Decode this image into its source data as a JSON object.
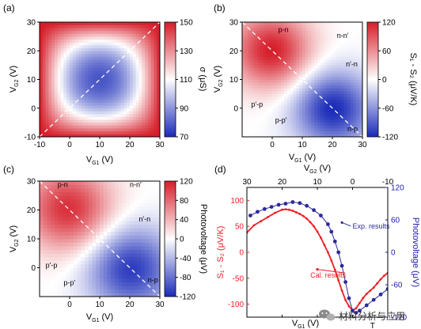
{
  "colors": {
    "blue": "#1a2bb8",
    "white": "#ffffff",
    "red": "#d61e2a",
    "red_series": "#ee1d23",
    "blue_series": "#2d2a9a",
    "right_axis": "#1f1aa0"
  },
  "watermark": {
    "text": "材料分析与应用",
    "icon": "wechat-icon"
  },
  "chart_data": [
    {
      "panel": "(a)",
      "type": "heatmap",
      "x": {
        "prefix": "V",
        "sub": "G1",
        "unit": "(V)",
        "range": [
          -10,
          30
        ],
        "ticks": [
          -10,
          0,
          10,
          20,
          30
        ]
      },
      "y": {
        "prefix": "V",
        "sub": "G2",
        "unit": "(V)",
        "range": [
          -10,
          30
        ],
        "ticks": [
          -10,
          0,
          10,
          20,
          30
        ]
      },
      "colorbar": {
        "label": "σ (μS)",
        "range": [
          70,
          150
        ],
        "ticks": [
          70,
          90,
          110,
          130,
          150
        ]
      },
      "model": {
        "kind": "saddle",
        "center": [
          10,
          10
        ],
        "base": 78,
        "x_coef": 0.18,
        "y_coef": 0.18,
        "cross_coef": -0.00044
      },
      "diagonal": {
        "from": [
          -10,
          -10
        ],
        "to": [
          30,
          30
        ]
      }
    },
    {
      "panel": "(b)",
      "type": "heatmap",
      "x": {
        "prefix": "V",
        "sub": "G1",
        "unit": "(V)",
        "range": [
          -10,
          30
        ],
        "ticks": [
          0,
          10,
          20,
          30
        ]
      },
      "y": {
        "prefix": "V",
        "sub": "G2",
        "unit": "(V)",
        "range": [
          -10,
          30
        ],
        "ticks": [
          0,
          10,
          20,
          30
        ]
      },
      "colorbar": {
        "label": "S₁ - S₂ (μV/K)",
        "range": [
          -120,
          120
        ],
        "ticks": [
          -120,
          -60,
          0,
          60,
          120
        ]
      },
      "model": {
        "kind": "antisymmetric",
        "center": [
          10,
          10
        ],
        "peak": 115,
        "peak_pos": [
          0,
          20
        ],
        "peak_width": 9,
        "ridge": 0.25
      },
      "diagonal": {
        "from": [
          -10,
          30
        ],
        "to": [
          30,
          -10
        ]
      },
      "region_labels": [
        {
          "text": "p-n",
          "x": 2,
          "y": 26.5
        },
        {
          "text": "n-n'",
          "x": 21.5,
          "y": 24.5
        },
        {
          "text": "n'-n",
          "x": 24.5,
          "y": 14.5
        },
        {
          "text": "p'-p",
          "x": -7,
          "y": 0.5
        },
        {
          "text": "p-p'",
          "x": 1,
          "y": -5
        },
        {
          "text": "n-p",
          "x": 25,
          "y": -8
        }
      ]
    },
    {
      "panel": "(c)",
      "type": "heatmap",
      "x": {
        "prefix": "V",
        "sub": "G1",
        "unit": "(V)",
        "range": [
          -10,
          30
        ],
        "ticks": [
          0,
          10,
          20,
          30
        ]
      },
      "y": {
        "prefix": "V",
        "sub": "G2",
        "unit": "(V)",
        "range": [
          -10,
          30
        ],
        "ticks": [
          0,
          10,
          20,
          30
        ]
      },
      "colorbar": {
        "label": "Photovoltage (μV)",
        "range": [
          -120,
          120
        ],
        "ticks": [
          -120,
          -80,
          -40,
          0,
          40,
          80,
          120
        ]
      },
      "model": {
        "kind": "antisymmetric",
        "center": [
          10,
          10
        ],
        "peak": 105,
        "peak_pos": [
          0,
          20
        ],
        "peak_width": 10,
        "ridge": 0.3,
        "pixel": 1.25
      },
      "diagonal": {
        "from": [
          -10,
          30
        ],
        "to": [
          30,
          -10
        ]
      },
      "region_labels": [
        {
          "text": "p-n",
          "x": -4,
          "y": 28
        },
        {
          "text": "n-n'",
          "x": 20,
          "y": 28
        },
        {
          "text": "n'-n",
          "x": 23,
          "y": 16
        },
        {
          "text": "p'-p",
          "x": -8,
          "y": 0
        },
        {
          "text": "p-p'",
          "x": -2,
          "y": -6
        },
        {
          "text": "n-p",
          "x": 26,
          "y": -5
        }
      ]
    },
    {
      "panel": "(d)",
      "type": "line",
      "x": {
        "prefix": "V",
        "sub": "G1",
        "unit": "(V)",
        "range": [
          -10,
          30
        ],
        "ticks": [
          0,
          10,
          20,
          30
        ]
      },
      "x2": {
        "prefix": "V",
        "sub": "G2",
        "unit": "(V)",
        "range": [
          30,
          -10
        ],
        "ticks": [
          30,
          20,
          10,
          0,
          -10
        ]
      },
      "y": {
        "label": "S₁ - S₂ (μV/K)",
        "range": [
          -125,
          125
        ],
        "ticks": [
          -100,
          -50,
          0,
          50,
          100
        ]
      },
      "y2": {
        "label": "Photovoltage (μV)",
        "range": [
          -120,
          120
        ],
        "ticks": [
          -120,
          -60,
          0,
          60,
          120
        ]
      },
      "series": [
        {
          "name": "Cal. results",
          "axis": "left",
          "marker": "small-dot",
          "x": [
            -10,
            -8,
            -6,
            -4,
            -2,
            0,
            1,
            2,
            3,
            4,
            5,
            6,
            7,
            8,
            9,
            10,
            11,
            12,
            13,
            14,
            15,
            16,
            17,
            18,
            19,
            20,
            21,
            22,
            23,
            24,
            25,
            26,
            27,
            28,
            29,
            30
          ],
          "y": [
            38,
            52,
            60,
            68,
            76,
            82,
            83,
            82,
            80,
            77,
            74,
            70,
            65,
            58,
            50,
            40,
            28,
            14,
            0,
            -16,
            -34,
            -54,
            -74,
            -92,
            -104,
            -112,
            -108,
            -98,
            -88,
            -80,
            -74,
            -68,
            -60,
            -52,
            -45,
            -40
          ]
        },
        {
          "name": "Exp. results",
          "axis": "right",
          "marker": "dot",
          "x": [
            -9,
            -7,
            -5,
            -3,
            -1,
            1,
            3,
            5,
            7,
            9,
            11,
            13,
            14,
            15,
            16,
            17,
            18,
            19,
            20,
            21,
            22,
            24,
            26,
            28,
            30
          ],
          "y": [
            68,
            75,
            80,
            84,
            88,
            90,
            93,
            91,
            86,
            78,
            68,
            52,
            38,
            20,
            0,
            -25,
            -55,
            -85,
            -108,
            -112,
            -108,
            -98,
            -88,
            -78,
            -68
          ]
        }
      ],
      "annotations": [
        {
          "text": "Exp. results",
          "x": 20,
          "y": 44,
          "arrow_to": [
            17,
            55
          ]
        },
        {
          "text": "Cal. results",
          "x": 8,
          "y": -49,
          "arrow_to": [
            10,
            -33
          ]
        }
      ],
      "t_marker": {
        "text": "T",
        "x": 25,
        "y": -125
      }
    }
  ]
}
